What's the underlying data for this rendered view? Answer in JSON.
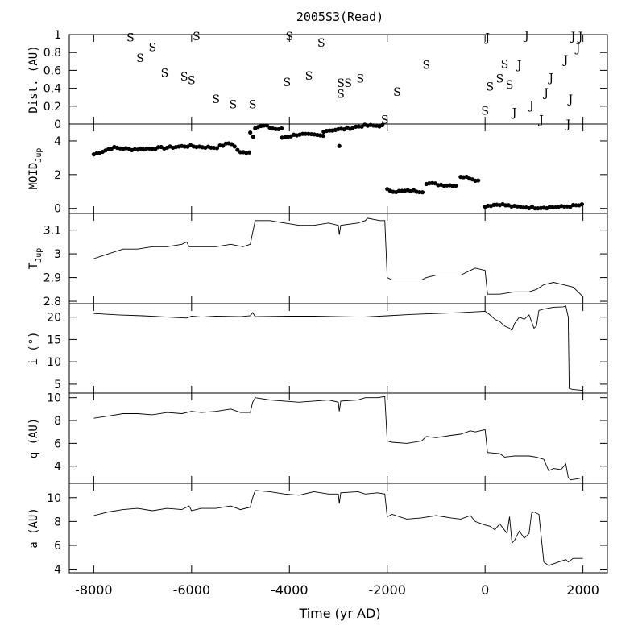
{
  "chart_data": {
    "title": "2005S3(Read)",
    "xlabel": "Time (yr AD)",
    "xlim": [
      -8500,
      2500
    ],
    "xticks": [
      -8000,
      -6000,
      -4000,
      -2000,
      0,
      2000
    ],
    "xtick_labels": [
      "-8000",
      "-6000",
      "-4000",
      "-2000",
      "0",
      "2000"
    ],
    "panels": [
      {
        "id": "dist",
        "type": "scatter",
        "ylabel": "Dist. (AU)",
        "ylim": [
          0,
          1
        ],
        "yticks": [
          0,
          0.2,
          0.4,
          0.6,
          0.8,
          1
        ],
        "ytick_labels": [
          "0",
          "0.2",
          "0.4",
          "0.6",
          "0.8",
          "1"
        ],
        "marker_series": [
          {
            "marker": "S",
            "points": [
              [
                -7250,
                0.97
              ],
              [
                -7050,
                0.74
              ],
              [
                -6800,
                0.86
              ],
              [
                -6550,
                0.57
              ],
              [
                -6150,
                0.53
              ],
              [
                -6000,
                0.49
              ],
              [
                -5900,
                0.98
              ],
              [
                -5500,
                0.28
              ],
              [
                -5150,
                0.22
              ],
              [
                -4750,
                0.22
              ],
              [
                -4000,
                0.98
              ],
              [
                -4050,
                0.47
              ],
              [
                -3600,
                0.54
              ],
              [
                -3350,
                0.91
              ],
              [
                -2950,
                0.46
              ],
              [
                -2950,
                0.34
              ],
              [
                -2800,
                0.46
              ],
              [
                -2550,
                0.51
              ],
              [
                -2050,
                0.05
              ],
              [
                -1800,
                0.36
              ],
              [
                -1200,
                0.66
              ],
              [
                0,
                0.15
              ],
              [
                100,
                0.42
              ],
              [
                300,
                0.51
              ],
              [
                400,
                0.67
              ],
              [
                500,
                0.44
              ]
            ]
          },
          {
            "marker": "J",
            "points": [
              [
                50,
                0.97
              ],
              [
                600,
                0.13
              ],
              [
                700,
                0.66
              ],
              [
                850,
                0.99
              ],
              [
                950,
                0.21
              ],
              [
                1150,
                0.05
              ],
              [
                1250,
                0.35
              ],
              [
                1350,
                0.52
              ],
              [
                1650,
                0.72
              ],
              [
                1700,
                0.0
              ],
              [
                1750,
                0.28
              ],
              [
                1800,
                0.98
              ],
              [
                1900,
                0.85
              ],
              [
                1950,
                0.98
              ]
            ]
          }
        ]
      },
      {
        "id": "moid",
        "type": "scatter",
        "ylabel": "MOID",
        "ylabel_sub": "Jup",
        "ylim": [
          -0.3,
          5.0
        ],
        "yticks": [
          0,
          2,
          4
        ],
        "ytick_labels": [
          "0",
          "2",
          "4"
        ],
        "segments": [
          {
            "x0": -8000,
            "x1": -4820,
            "y0": 3.2,
            "y1": 3.6,
            "trend": [
              [
                -8000,
                3.2
              ],
              [
                -7600,
                3.6
              ],
              [
                -7200,
                3.5
              ],
              [
                -6500,
                3.6
              ],
              [
                -6100,
                3.7
              ],
              [
                -5500,
                3.6
              ],
              [
                -5200,
                3.9
              ],
              [
                -5000,
                3.3
              ],
              [
                -4820,
                3.35
              ]
            ]
          },
          {
            "x0": -4800,
            "x1": -4700,
            "y0": 3.7,
            "y1": 4.5,
            "trend": [
              [
                -4790,
                3.7
              ],
              [
                -4760,
                4.1
              ],
              [
                -4720,
                4.5
              ]
            ]
          },
          {
            "x0": -4700,
            "x1": -4150,
            "y0": 4.5,
            "y1": 4.8,
            "trend": [
              [
                -4700,
                4.8
              ],
              [
                -4500,
                4.9
              ],
              [
                -4300,
                4.7
              ],
              [
                -4150,
                4.7
              ]
            ]
          },
          {
            "x0": -4150,
            "x1": -3300,
            "y0": 4.2,
            "y1": 4.4,
            "trend": [
              [
                -4150,
                4.2
              ],
              [
                -3800,
                4.4
              ],
              [
                -3300,
                4.3
              ]
            ]
          },
          {
            "x0": -3300,
            "x1": -2100,
            "y0": 4.5,
            "y1": 4.9,
            "trend": [
              [
                -3300,
                4.6
              ],
              [
                -2900,
                4.7
              ],
              [
                -2500,
                4.9
              ],
              [
                -2100,
                4.9
              ]
            ]
          },
          {
            "x0": -2000,
            "x1": -1250,
            "y0": 0.95,
            "y1": 1.1,
            "trend": [
              [
                -2000,
                1.1
              ],
              [
                -1800,
                1.0
              ],
              [
                -1500,
                1.05
              ],
              [
                -1250,
                1.0
              ]
            ]
          },
          {
            "x0": -1200,
            "x1": -550,
            "y0": 1.3,
            "y1": 1.5,
            "trend": [
              [
                -1200,
                1.5
              ],
              [
                -900,
                1.4
              ],
              [
                -550,
                1.35
              ]
            ]
          },
          {
            "x0": -500,
            "x1": -100,
            "y0": 1.6,
            "y1": 1.9,
            "trend": [
              [
                -500,
                1.9
              ],
              [
                -300,
                1.8
              ],
              [
                -100,
                1.6
              ]
            ]
          },
          {
            "x0": 0,
            "x1": 2000,
            "y0": 0.05,
            "y1": 0.25,
            "trend": [
              [
                0,
                0.15
              ],
              [
                300,
                0.25
              ],
              [
                600,
                0.1
              ],
              [
                1000,
                0.05
              ],
              [
                1500,
                0.08
              ],
              [
                2000,
                0.2
              ]
            ]
          }
        ],
        "outliers": [
          [
            -2980,
            3.7
          ]
        ]
      },
      {
        "id": "tjup",
        "type": "line",
        "ylabel": "T",
        "ylabel_sub": "Jup",
        "ylim": [
          2.79,
          3.17
        ],
        "yticks": [
          2.8,
          2.9,
          3.0,
          3.1
        ],
        "ytick_labels": [
          "2.8",
          "2.9",
          "3",
          "3.1"
        ],
        "x": [
          -8000,
          -7700,
          -7400,
          -7100,
          -6800,
          -6500,
          -6200,
          -6100,
          -6050,
          -5800,
          -5500,
          -5200,
          -4950,
          -4800,
          -4750,
          -4700,
          -4400,
          -4100,
          -3800,
          -3500,
          -3200,
          -3000,
          -2980,
          -2950,
          -2600,
          -2450,
          -2400,
          -2150,
          -2050,
          -2000,
          -1900,
          -1600,
          -1300,
          -1200,
          -1000,
          -700,
          -500,
          -300,
          -200,
          0,
          50,
          300,
          600,
          900,
          1050,
          1200,
          1400,
          1600,
          1800,
          2000
        ],
        "y": [
          2.98,
          3.0,
          3.02,
          3.02,
          3.03,
          3.03,
          3.04,
          3.05,
          3.03,
          3.03,
          3.03,
          3.04,
          3.03,
          3.04,
          3.09,
          3.14,
          3.14,
          3.13,
          3.12,
          3.12,
          3.13,
          3.12,
          3.08,
          3.12,
          3.13,
          3.14,
          3.15,
          3.14,
          3.14,
          2.9,
          2.89,
          2.89,
          2.89,
          2.9,
          2.91,
          2.91,
          2.91,
          2.93,
          2.94,
          2.93,
          2.83,
          2.83,
          2.84,
          2.84,
          2.85,
          2.87,
          2.88,
          2.87,
          2.86,
          2.82
        ]
      },
      {
        "id": "incl",
        "type": "line",
        "ylabel": "i (°)",
        "ylim": [
          3,
          23
        ],
        "yticks": [
          5,
          10,
          15,
          20
        ],
        "ytick_labels": [
          "5",
          "10",
          "15",
          "20"
        ],
        "x": [
          -8000,
          -7500,
          -7000,
          -6500,
          -6100,
          -6000,
          -5800,
          -5500,
          -5000,
          -4800,
          -4750,
          -4700,
          -4000,
          -3500,
          -3000,
          -2500,
          -2000,
          -1500,
          -1000,
          -500,
          0,
          100,
          200,
          300,
          400,
          500,
          550,
          600,
          700,
          800,
          900,
          1000,
          1050,
          1100,
          1200,
          1300,
          1400,
          1600,
          1650,
          1700,
          1720,
          1800,
          1900,
          2000
        ],
        "y": [
          20.8,
          20.5,
          20.3,
          20.0,
          19.8,
          20.2,
          20.0,
          20.2,
          20.1,
          20.3,
          21.0,
          20.1,
          20.2,
          20.2,
          20.1,
          20.0,
          20.3,
          20.6,
          20.8,
          21.0,
          21.3,
          20.5,
          19.5,
          19.0,
          18.0,
          17.5,
          17.0,
          18.5,
          20.0,
          19.5,
          20.5,
          17.5,
          18.0,
          21.5,
          21.8,
          22.0,
          22.2,
          22.3,
          22.5,
          20.0,
          4.0,
          3.8,
          3.7,
          3.6
        ]
      },
      {
        "id": "q",
        "type": "line",
        "ylabel": "q (AU)",
        "ylim": [
          2.5,
          10.4
        ],
        "yticks": [
          4,
          6,
          8,
          10
        ],
        "ytick_labels": [
          "4",
          "6",
          "8",
          "10"
        ],
        "x": [
          -8000,
          -7700,
          -7400,
          -7100,
          -6800,
          -6500,
          -6200,
          -6000,
          -5800,
          -5500,
          -5200,
          -5000,
          -4800,
          -4750,
          -4700,
          -4400,
          -4100,
          -3800,
          -3500,
          -3200,
          -3000,
          -2980,
          -2950,
          -2600,
          -2450,
          -2200,
          -2050,
          -2000,
          -1900,
          -1600,
          -1300,
          -1200,
          -1000,
          -700,
          -500,
          -300,
          -200,
          0,
          50,
          300,
          400,
          600,
          900,
          1050,
          1200,
          1300,
          1400,
          1550,
          1650,
          1700,
          1750,
          1900,
          2000
        ],
        "y": [
          8.2,
          8.4,
          8.6,
          8.6,
          8.5,
          8.7,
          8.6,
          8.8,
          8.7,
          8.8,
          9.0,
          8.7,
          8.7,
          9.6,
          10.0,
          9.8,
          9.7,
          9.6,
          9.7,
          9.8,
          9.6,
          8.8,
          9.7,
          9.8,
          10.0,
          10.0,
          10.1,
          6.2,
          6.1,
          6.0,
          6.2,
          6.6,
          6.5,
          6.7,
          6.8,
          7.1,
          7.0,
          7.2,
          5.2,
          5.1,
          4.8,
          4.9,
          4.9,
          4.8,
          4.6,
          3.6,
          3.8,
          3.7,
          4.2,
          3.0,
          2.8,
          2.9,
          3.0
        ]
      },
      {
        "id": "a",
        "type": "line",
        "ylabel": "a (AU)",
        "ylim": [
          3.7,
          11.2
        ],
        "yticks": [
          4,
          6,
          8,
          10
        ],
        "ytick_labels": [
          "4",
          "6",
          "8",
          "10"
        ],
        "x": [
          -8000,
          -7700,
          -7400,
          -7100,
          -6800,
          -6500,
          -6200,
          -6050,
          -6000,
          -5800,
          -5500,
          -5200,
          -5000,
          -4800,
          -4750,
          -4700,
          -4400,
          -4100,
          -3800,
          -3500,
          -3200,
          -3000,
          -2980,
          -2950,
          -2600,
          -2450,
          -2200,
          -2050,
          -2000,
          -1900,
          -1600,
          -1300,
          -1000,
          -700,
          -500,
          -300,
          -200,
          0,
          100,
          200,
          300,
          450,
          500,
          550,
          600,
          700,
          800,
          900,
          950,
          1000,
          1100,
          1200,
          1300,
          1500,
          1650,
          1700,
          1800,
          1900,
          2000
        ],
        "y": [
          8.5,
          8.8,
          9.0,
          9.1,
          8.9,
          9.1,
          9.0,
          9.3,
          8.9,
          9.1,
          9.1,
          9.3,
          9.0,
          9.2,
          10.0,
          10.6,
          10.5,
          10.3,
          10.2,
          10.5,
          10.3,
          10.3,
          9.5,
          10.4,
          10.5,
          10.3,
          10.4,
          10.3,
          8.4,
          8.6,
          8.2,
          8.3,
          8.5,
          8.3,
          8.2,
          8.5,
          8.0,
          7.7,
          7.6,
          7.3,
          7.8,
          7.0,
          8.4,
          6.2,
          6.4,
          7.2,
          6.6,
          7.0,
          8.7,
          8.8,
          8.6,
          4.6,
          4.3,
          4.6,
          4.8,
          4.6,
          4.9,
          4.9,
          4.9
        ]
      }
    ]
  }
}
